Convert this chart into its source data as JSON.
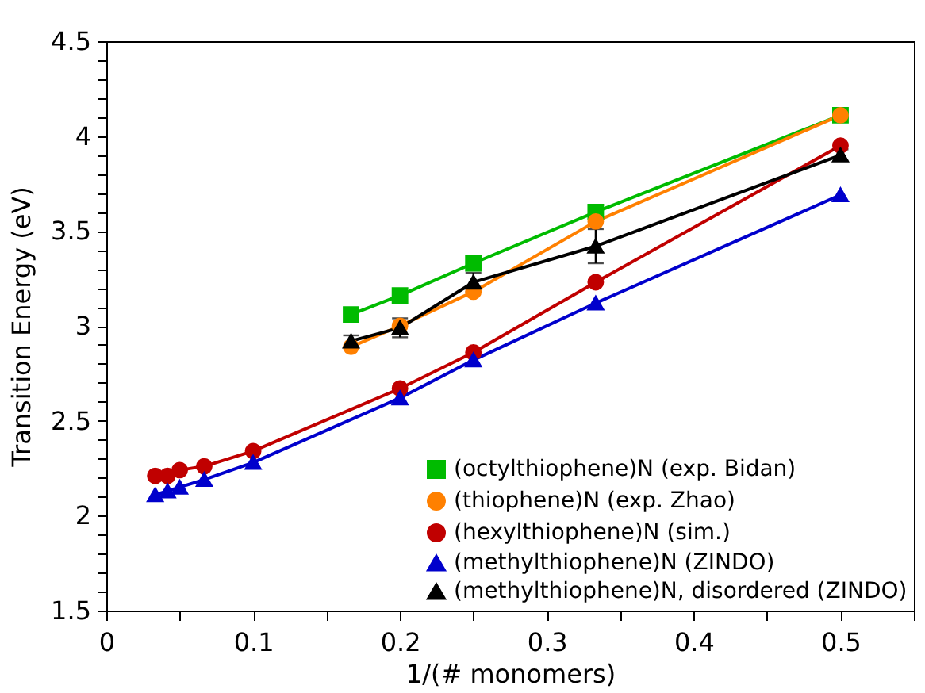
{
  "chart_data": {
    "type": "line",
    "xlabel": "1/(# monomers)",
    "ylabel": "Transition Energy (eV)",
    "xlim": [
      0,
      0.55
    ],
    "ylim": [
      1.5,
      4.5
    ],
    "xticks": [
      0,
      {
        "value": 0.05,
        "label": null
      },
      0.1,
      {
        "value": 0.15,
        "label": null
      },
      0.2,
      {
        "value": 0.25,
        "label": null
      },
      0.3,
      {
        "value": 0.35,
        "label": null
      },
      0.4,
      {
        "value": 0.45,
        "label": null
      },
      0.5,
      {
        "value": 0.55,
        "label": null
      }
    ],
    "yticks": [
      1.5,
      {
        "value": 1.6,
        "label": null
      },
      {
        "value": 1.7,
        "label": null
      },
      {
        "value": 1.8,
        "label": null
      },
      {
        "value": 1.9,
        "label": null
      },
      2,
      {
        "value": 2.1,
        "label": null
      },
      {
        "value": 2.2,
        "label": null
      },
      {
        "value": 2.3,
        "label": null
      },
      {
        "value": 2.4,
        "label": null
      },
      2.5,
      {
        "value": 2.6,
        "label": null
      },
      {
        "value": 2.7,
        "label": null
      },
      {
        "value": 2.8,
        "label": null
      },
      {
        "value": 2.9,
        "label": null
      },
      3,
      {
        "value": 3.1,
        "label": null
      },
      {
        "value": 3.2,
        "label": null
      },
      {
        "value": 3.3,
        "label": null
      },
      {
        "value": 3.4,
        "label": null
      },
      3.5,
      {
        "value": 3.6,
        "label": null
      },
      {
        "value": 3.7,
        "label": null
      },
      {
        "value": 3.8,
        "label": null
      },
      {
        "value": 3.9,
        "label": null
      },
      4,
      {
        "value": 4.1,
        "label": null
      },
      {
        "value": 4.2,
        "label": null
      },
      {
        "value": 4.3,
        "label": null
      },
      {
        "value": 4.4,
        "label": null
      },
      4.5
    ],
    "grid": false,
    "legend": "bottom right",
    "line_style": "solid",
    "series": [
      {
        "name": "(octylthiophene)N (exp. Bidan)",
        "color": "#00bb00",
        "marker": "square",
        "x": [
          0.1667,
          0.2,
          0.25,
          0.3333,
          0.5
        ],
        "values": [
          3.06,
          3.16,
          3.33,
          3.6,
          4.11
        ]
      },
      {
        "name": "(thiophene)N (exp. Zhao)",
        "color": "#ff8000",
        "marker": "circle",
        "x": [
          0.1667,
          0.2,
          0.25,
          0.3333,
          0.5
        ],
        "values": [
          2.89,
          3.0,
          3.18,
          3.55,
          4.11
        ]
      },
      {
        "name": "(hexylthiophene)N (sim.)",
        "color": "#c00000",
        "marker": "circle",
        "x": [
          0.0333,
          0.0417,
          0.05,
          0.0667,
          0.1,
          0.2,
          0.25,
          0.3333,
          0.5
        ],
        "values": [
          2.21,
          2.21,
          2.24,
          2.26,
          2.34,
          2.67,
          2.86,
          3.23,
          3.95
        ]
      },
      {
        "name": "(methylthiophene)N (ZINDO)",
        "color": "#0000cc",
        "marker": "triangle",
        "x": [
          0.0333,
          0.0417,
          0.05,
          0.0667,
          0.1,
          0.2,
          0.25,
          0.3333,
          0.5
        ],
        "values": [
          2.11,
          2.13,
          2.15,
          2.19,
          2.28,
          2.62,
          2.82,
          3.12,
          3.69
        ]
      },
      {
        "name": "(methylthiophene)N, disordered (ZINDO)",
        "color": "#000000",
        "marker": "triangle",
        "x": [
          0.1667,
          0.2,
          0.25,
          0.3333,
          0.5
        ],
        "values": [
          2.92,
          2.99,
          3.23,
          3.42,
          3.9
        ],
        "errors": [
          0.03,
          0.05,
          0.05,
          0.09,
          0.03
        ]
      }
    ]
  }
}
